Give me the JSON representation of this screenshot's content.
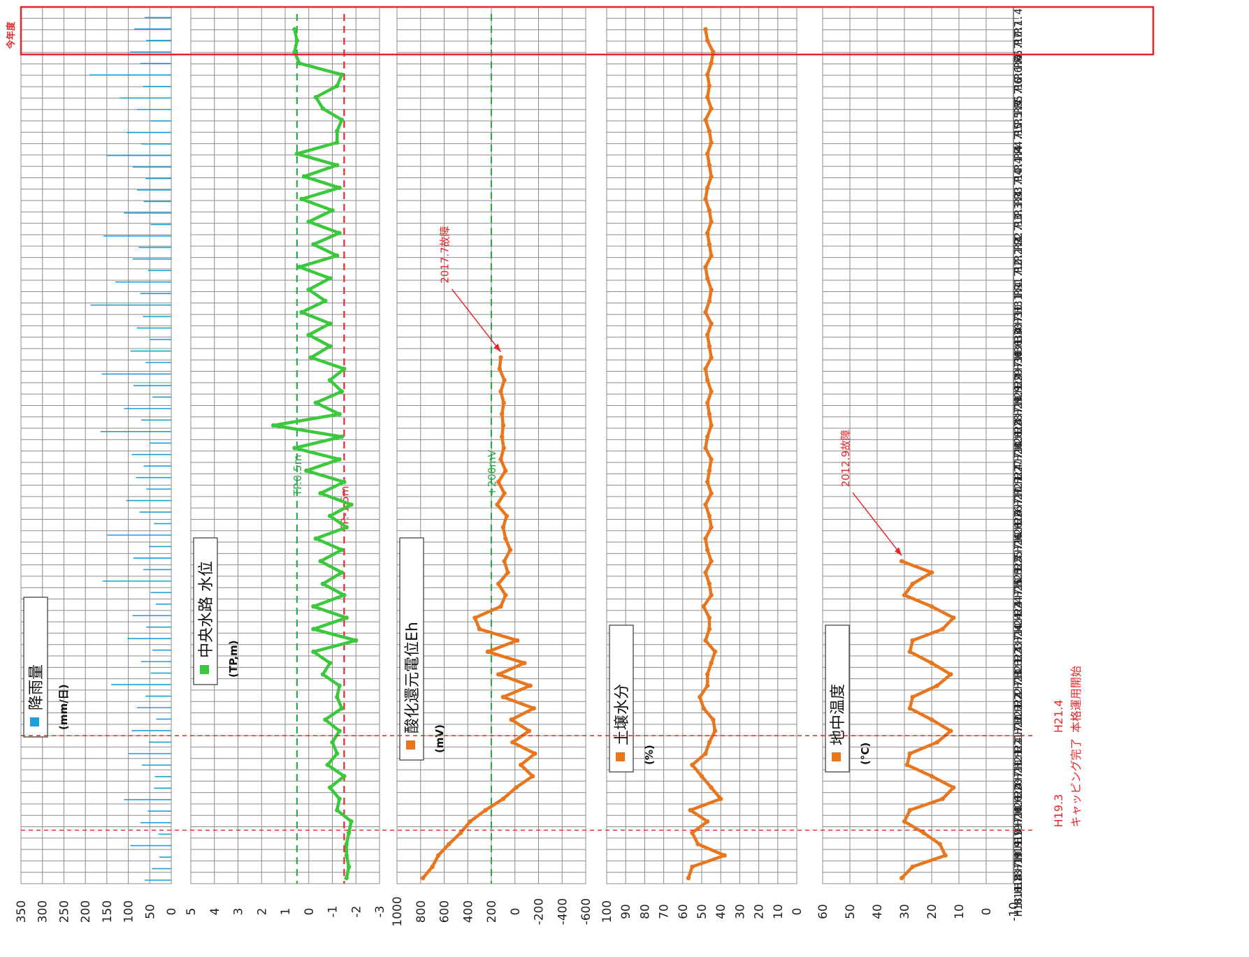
{
  "chart_data": {
    "type": "scatter",
    "orientation": "rotated-90-ccw",
    "current_year_label": "今年度",
    "time_axis": {
      "labels": [
        "H18.1",
        "H18.4",
        "H18.7",
        "H18.10",
        "H19.1",
        "H19.4",
        "H19.7",
        "H19.10",
        "H20.1",
        "H20.4",
        "H20.7",
        "H20.10",
        "H21.1",
        "H21.4",
        "H21.7",
        "H21.10",
        "H22.1",
        "H22.4",
        "H22.7",
        "H22.10",
        "H23.1",
        "H23.4",
        "H23.7",
        "H23.10",
        "H24.1",
        "H24.4",
        "H24.7",
        "H24.10",
        "H25.1",
        "H25.4",
        "H25.7",
        "H25.10",
        "H26.1",
        "H26.4",
        "H26.7",
        "H26.10",
        "H27.1",
        "H27.4",
        "H27.7",
        "H27.10",
        "H28.1",
        "H28.4",
        "H28.7",
        "H28.10",
        "H29.1",
        "H29.4",
        "H29.7",
        "H29.10",
        "H30.1",
        "H30.4",
        "H30.7",
        "H30.10",
        "H31.1",
        "H31.4",
        "R1.7",
        "R1.10",
        "R2.1",
        "R2.4",
        "R2.7",
        "R2.10",
        "R3.1",
        "R3.4",
        "R3.7",
        "R3.10",
        "R4.1",
        "R4.4",
        "R4.7",
        "R4.10",
        "R5.1",
        "R5.4",
        "R5.7",
        "R5.10",
        "R6.1",
        "R6.4",
        "R6.7",
        "R6.10",
        "R7.1",
        "R7.4"
      ]
    },
    "events": [
      {
        "label_1": "H19.3",
        "label_2": "キャッピング完了",
        "date_index": 4.7
      },
      {
        "label_1": "H21.4",
        "label_2": "本格運用開始",
        "date_index": 13
      }
    ],
    "panels": [
      {
        "id": "rain",
        "title": "降雨量",
        "unit": "(mm/日)",
        "series_color": "#1e9fd8",
        "kind": "bars",
        "ylim": [
          0,
          350
        ],
        "ticks": [
          350,
          300,
          250,
          200,
          150,
          100,
          50,
          0
        ],
        "bar_values": [
          62,
          45,
          28,
          95,
          30,
          72,
          55,
          110,
          40,
          38,
          68,
          100,
          52,
          92,
          35,
          80,
          60,
          140,
          48,
          70,
          44,
          102,
          58,
          90,
          36,
          48,
          160,
          65,
          88,
          52,
          150,
          40,
          74,
          105,
          58,
          82,
          64,
          92,
          50,
          165,
          70,
          110,
          44,
          88,
          162,
          60,
          95,
          50,
          80,
          66,
          188,
          72,
          130,
          54,
          90,
          76,
          158,
          48,
          110,
          64,
          80,
          60,
          90,
          150,
          70,
          104,
          48,
          80,
          120,
          66,
          190,
          72,
          96,
          58,
          86,
          62
        ]
      },
      {
        "id": "water",
        "title": "中央水路 水位",
        "unit": "(TP,m)",
        "series_color": "#3cc83c",
        "kind": "points",
        "ylim": [
          -3,
          5
        ],
        "ticks": [
          5,
          4,
          3,
          2,
          1,
          0,
          -1,
          -2,
          -3
        ],
        "ref_lines": [
          {
            "label": "TP.0.5m",
            "value": 0.5,
            "color": "#2aa84a"
          },
          {
            "label": "TP.-1.5m",
            "value": -1.5,
            "color": "#e8262a"
          }
        ],
        "values": [
          -1.6,
          -1.7,
          -1.6,
          -1.6,
          -1.7,
          -1.8,
          -1.2,
          -1.3,
          -0.9,
          -1.5,
          -0.8,
          -1.2,
          -1.0,
          -1.3,
          -0.7,
          -1.4,
          -1.2,
          -1.3,
          -0.6,
          -0.9,
          -0.2,
          -2.0,
          -0.2,
          -1.6,
          -0.2,
          -1.5,
          -0.6,
          -1.4,
          -0.5,
          -1.4,
          -0.3,
          -1.6,
          -0.9,
          -1.8,
          -0.5,
          -1.5,
          0.1,
          -1.3,
          0.6,
          -1.4,
          1.5,
          -1.3,
          -0.3,
          -1.4,
          -0.9,
          -1.5,
          -0.1,
          -0.9,
          0.0,
          -0.9,
          0.3,
          -0.7,
          0.0,
          -0.9,
          0.4,
          -1.2,
          -0.2,
          -1.3,
          0.0,
          -1.0,
          0.3,
          -1.3,
          0.2,
          -1.2,
          0.5,
          -1.2,
          -1.2,
          -1.4,
          -0.6,
          -0.3,
          -1.2,
          -1.4,
          0.4,
          0.6,
          0.5,
          0.6
        ]
      },
      {
        "id": "eh",
        "title": "酸化還元電位Eh",
        "unit": "(mV)",
        "series_color": "#e8761e",
        "kind": "points",
        "ylim": [
          -600,
          1000
        ],
        "ticks": [
          1000,
          800,
          600,
          400,
          200,
          0,
          -200,
          -400,
          -600
        ],
        "ref_lines": [
          {
            "label": "+200mV",
            "value": 200,
            "color": "#2aa84a"
          }
        ],
        "annotation": {
          "label": "2017.7故障",
          "date_index": 46
        },
        "values": [
          780,
          700,
          650,
          560,
          460,
          380,
          250,
          100,
          -10,
          -150,
          -50,
          -170,
          20,
          -120,
          30,
          -160,
          100,
          -130,
          140,
          -80,
          230,
          -20,
          300,
          340,
          120,
          80,
          140,
          60,
          90,
          40,
          80,
          100,
          70,
          150,
          90,
          140,
          80,
          120,
          95,
          110,
          100,
          110,
          95,
          120,
          90,
          130,
          120,
          null,
          null,
          null,
          null,
          null,
          null,
          null,
          null,
          null,
          null,
          null,
          null,
          null,
          null,
          null,
          null,
          null,
          null,
          null,
          null,
          null,
          null,
          null,
          null,
          null,
          null,
          null,
          null,
          null
        ]
      },
      {
        "id": "moisture",
        "title": "土壌水分",
        "unit": "(%)",
        "series_color": "#e8761e",
        "kind": "points",
        "ylim": [
          0,
          100
        ],
        "ticks": [
          100,
          90,
          80,
          70,
          60,
          50,
          40,
          30,
          20,
          10,
          0
        ],
        "values": [
          57,
          55,
          38,
          52,
          55,
          47,
          56,
          40,
          45,
          50,
          55,
          48,
          46,
          43,
          44,
          49,
          51,
          47,
          47,
          45,
          43,
          48,
          46,
          46,
          49,
          45,
          46,
          48,
          45,
          47,
          48,
          45,
          46,
          48,
          45,
          47,
          46,
          45,
          48,
          47,
          45,
          46,
          47,
          45,
          47,
          48,
          45,
          46,
          47,
          45,
          48,
          46,
          45,
          47,
          48,
          45,
          46,
          47,
          45,
          46,
          48,
          47,
          45,
          46,
          47,
          45,
          46,
          48,
          45,
          47,
          46,
          47,
          45,
          44,
          47,
          48
        ]
      },
      {
        "id": "soiltemp",
        "title": "地中温度",
        "unit": "(°C)",
        "series_color": "#e8761e",
        "kind": "points",
        "ylim": [
          -10,
          60
        ],
        "ticks": [
          60,
          50,
          40,
          30,
          20,
          10,
          0,
          -10
        ],
        "annotation": {
          "label": "2012.9故障",
          "date_index": 27
        },
        "values": [
          31,
          27,
          15,
          17,
          23,
          30,
          28,
          16,
          12,
          20,
          29,
          28,
          18,
          13,
          20,
          28,
          27,
          18,
          13,
          20,
          28,
          27,
          16,
          12,
          20,
          30,
          27,
          20,
          31,
          null,
          null,
          null,
          null,
          null,
          null,
          null,
          null,
          null,
          null,
          null,
          null,
          null,
          null,
          null,
          null,
          null,
          null,
          null,
          null,
          null,
          null,
          null,
          null,
          null,
          null,
          null,
          null,
          null,
          null,
          null,
          null,
          null,
          null,
          null,
          null,
          null,
          null,
          null,
          null,
          null,
          null,
          null,
          null,
          null,
          null,
          null
        ]
      }
    ]
  }
}
